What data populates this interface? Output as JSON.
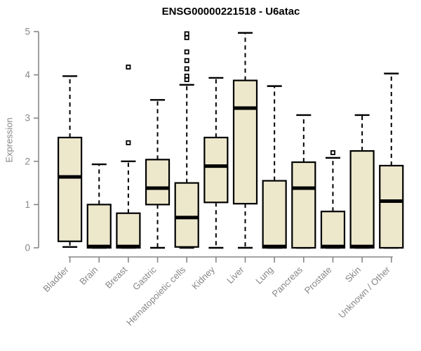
{
  "title": "ENSG00000221518 - U6atac",
  "y_axis": {
    "label": "Expression",
    "ticks": [
      "0",
      "1",
      "2",
      "3",
      "4",
      "5"
    ],
    "range": [
      0,
      5
    ]
  },
  "colors": {
    "box_fill": "#EDE8CC",
    "box_stroke": "#000000",
    "median": "#000000",
    "whisker": "#000000",
    "outlier": "#000000",
    "axis": "#878787",
    "tick_label": "#878787",
    "title_text": "#000000",
    "background": "#FFFFFF"
  },
  "chart_data": {
    "type": "boxplot",
    "title": "ENSG00000221518 - U6atac",
    "xlabel": "",
    "ylabel": "Expression",
    "ylim": [
      0,
      5
    ],
    "y_ticks": [
      0,
      1,
      2,
      3,
      4,
      5
    ],
    "grid": false,
    "legend": "none",
    "categories": [
      "Bladder",
      "Brain",
      "Breast",
      "Gastric",
      "Hematopoietic cells",
      "Kidney",
      "Liver",
      "Lung",
      "Pancreas",
      "Prostate",
      "Skin",
      "Unknown / Other"
    ],
    "boxes": [
      {
        "category": "Bladder",
        "whisker_low": 0.02,
        "q1": 0.15,
        "median": 1.64,
        "q3": 2.55,
        "whisker_high": 3.97,
        "outliers": []
      },
      {
        "category": "Brain",
        "whisker_low": 0.0,
        "q1": 0.0,
        "median": 0.03,
        "q3": 1.0,
        "whisker_high": 1.93,
        "outliers": []
      },
      {
        "category": "Breast",
        "whisker_low": 0.0,
        "q1": 0.0,
        "median": 0.03,
        "q3": 0.8,
        "whisker_high": 2.0,
        "outliers": [
          2.43,
          4.18
        ]
      },
      {
        "category": "Gastric",
        "whisker_low": 0.0,
        "q1": 1.0,
        "median": 1.38,
        "q3": 2.04,
        "whisker_high": 3.42,
        "outliers": []
      },
      {
        "category": "Hematopoietic cells",
        "whisker_low": 0.0,
        "q1": 0.02,
        "median": 0.7,
        "q3": 1.5,
        "whisker_high": 3.77,
        "outliers": [
          3.89,
          3.97,
          4.14,
          4.33,
          4.53,
          4.86,
          4.95
        ]
      },
      {
        "category": "Kidney",
        "whisker_low": 0.0,
        "q1": 1.05,
        "median": 1.89,
        "q3": 2.55,
        "whisker_high": 3.93,
        "outliers": []
      },
      {
        "category": "Liver",
        "whisker_low": 0.0,
        "q1": 1.02,
        "median": 3.23,
        "q3": 3.87,
        "whisker_high": 4.97,
        "outliers": []
      },
      {
        "category": "Lung",
        "whisker_low": 0.0,
        "q1": 0.0,
        "median": 0.03,
        "q3": 1.55,
        "whisker_high": 3.74,
        "outliers": []
      },
      {
        "category": "Pancreas",
        "whisker_low": 0.0,
        "q1": 0.0,
        "median": 1.38,
        "q3": 1.98,
        "whisker_high": 3.07,
        "outliers": []
      },
      {
        "category": "Prostate",
        "whisker_low": 0.0,
        "q1": 0.0,
        "median": 0.03,
        "q3": 0.84,
        "whisker_high": 2.08,
        "outliers": [
          2.2
        ]
      },
      {
        "category": "Skin",
        "whisker_low": 0.0,
        "q1": 0.0,
        "median": 0.03,
        "q3": 2.24,
        "whisker_high": 3.07,
        "outliers": []
      },
      {
        "category": "Unknown / Other",
        "whisker_low": 0.0,
        "q1": 0.0,
        "median": 1.08,
        "q3": 1.9,
        "whisker_high": 4.03,
        "outliers": []
      }
    ]
  }
}
